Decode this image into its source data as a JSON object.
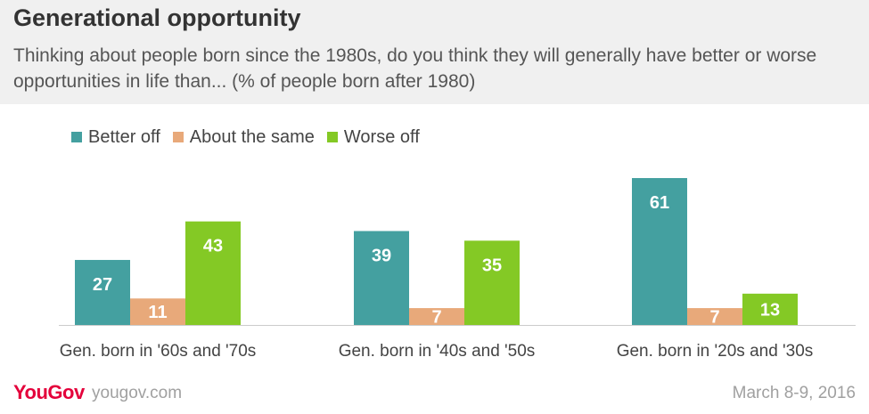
{
  "chart_data": {
    "type": "bar",
    "title": "Generational opportunity",
    "subtitle": "Thinking about people born since the 1980s, do you think they will generally have better or worse opportunities in life than... (% of people born after 1980)",
    "categories": [
      "Gen. born in '60s and '70s",
      "Gen. born in '40s and '50s",
      "Gen. born in '20s and '30s"
    ],
    "series": [
      {
        "name": "Better off",
        "values": [
          27,
          39,
          61
        ],
        "color": "#44a0a0"
      },
      {
        "name": "About the same",
        "values": [
          11,
          7,
          7
        ],
        "color": "#e8a97a"
      },
      {
        "name": "Worse off",
        "values": [
          43,
          35,
          13
        ],
        "color": "#84c925"
      }
    ],
    "ylim": [
      0,
      61
    ],
    "grid": false,
    "legend_position": "top-left",
    "data_labels": true
  },
  "footer": {
    "brand": "YouGov",
    "site": "yougov.com",
    "date": "March 8-9, 2016"
  }
}
